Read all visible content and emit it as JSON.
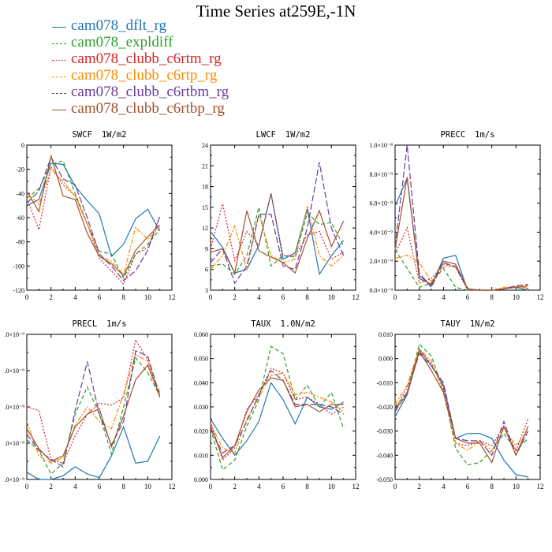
{
  "title": "Time Series at259E,-1N",
  "legend": [
    {
      "label": "cam078_dflt_rg",
      "color": "#1f77b4",
      "dash": "solid"
    },
    {
      "label": "cam078_expldiff",
      "color": "#2ca02c",
      "dash": "dash"
    },
    {
      "label": "cam078_clubb_c6rtm_rg",
      "color": "#d62728",
      "dash": "dot"
    },
    {
      "label": "cam078_clubb_c6rtp_rg",
      "color": "#ff8c00",
      "dash": "dashdot"
    },
    {
      "label": "cam078_clubb_c6rtbm_rg",
      "color": "#6a3d9a",
      "dash": "longdash"
    },
    {
      "label": "cam078_clubb_c6rtbp_rg",
      "color": "#a0522d",
      "dash": "solid"
    }
  ],
  "chart_data": [
    {
      "type": "line",
      "title": "SWCF",
      "units": "1W/m2",
      "x": [
        0,
        1,
        2,
        3,
        4,
        5,
        6,
        7,
        8,
        9,
        10,
        11
      ],
      "xlim": [
        0,
        12
      ],
      "xticks": [
        "0",
        "2",
        "4",
        "6",
        "8",
        "10",
        "12"
      ],
      "ylim": [
        -120,
        0
      ],
      "yticks": [
        "-120",
        "-100",
        "-80",
        "-60",
        "-40",
        "-20",
        "0"
      ],
      "series": [
        {
          "name": "cam078_dflt_rg",
          "values": [
            -50,
            -45,
            -15,
            -16,
            -34,
            -46,
            -57,
            -92,
            -82,
            -61,
            -53,
            -71
          ]
        },
        {
          "name": "cam078_expldiff",
          "values": [
            -44,
            -36,
            -16,
            -13,
            -40,
            -65,
            -88,
            -90,
            -110,
            -90,
            -82,
            -70
          ]
        },
        {
          "name": "cam078_clubb_c6rtm_rg",
          "values": [
            -44,
            -70,
            -18,
            -33,
            -42,
            -65,
            -94,
            -104,
            -115,
            -90,
            -85,
            -59
          ]
        },
        {
          "name": "cam078_clubb_c6rtp_rg",
          "values": [
            -39,
            -49,
            -20,
            -30,
            -42,
            -65,
            -92,
            -96,
            -107,
            -68,
            -78,
            -68
          ]
        },
        {
          "name": "cam078_clubb_c6rtbm_rg",
          "values": [
            -48,
            -38,
            -10,
            -28,
            -33,
            -60,
            -90,
            -100,
            -112,
            -104,
            -87,
            -59
          ]
        },
        {
          "name": "cam078_clubb_c6rtbp_rg",
          "values": [
            -38,
            -55,
            -9,
            -42,
            -45,
            -73,
            -92,
            -98,
            -108,
            -87,
            -76,
            -66
          ]
        }
      ]
    },
    {
      "type": "line",
      "title": "LWCF",
      "units": "1W/m2",
      "x": [
        0,
        1,
        2,
        3,
        4,
        5,
        6,
        7,
        8,
        9,
        10,
        11
      ],
      "xlim": [
        0,
        12
      ],
      "xticks": [
        "0",
        "2",
        "4",
        "6",
        "8",
        "10",
        "12"
      ],
      "ylim": [
        3,
        24
      ],
      "yticks": [
        "3",
        "6",
        "9",
        "12",
        "15",
        "18",
        "21",
        "24"
      ],
      "series": [
        {
          "name": "cam078_dflt_rg",
          "values": [
            11.5,
            9.2,
            5.5,
            6,
            9.5,
            17,
            7.5,
            8.4,
            14.8,
            5.3,
            8,
            10.2
          ]
        },
        {
          "name": "cam078_expldiff",
          "values": [
            6.5,
            6.8,
            5.3,
            8,
            15,
            6.5,
            8,
            7.8,
            14.2,
            12.5,
            12.8,
            9.4
          ]
        },
        {
          "name": "cam078_clubb_c6rtm_rg",
          "values": [
            9,
            15.5,
            7.3,
            11.5,
            9.5,
            17,
            8,
            8,
            11,
            11.5,
            7.5,
            8.5
          ]
        },
        {
          "name": "cam078_clubb_c6rtp_rg",
          "values": [
            6,
            8,
            12.3,
            6,
            14,
            8,
            7,
            7.5,
            15.2,
            8,
            6.5,
            8
          ]
        },
        {
          "name": "cam078_clubb_c6rtbm_rg",
          "values": [
            7,
            9,
            4,
            6.5,
            14,
            14,
            6.5,
            6,
            12,
            21.5,
            12,
            8
          ]
        },
        {
          "name": "cam078_clubb_c6rtbp_rg",
          "values": [
            8.5,
            9,
            5.5,
            14.5,
            8.7,
            7.8,
            7,
            5.5,
            10.5,
            14.5,
            9.3,
            13
          ]
        }
      ]
    },
    {
      "type": "line",
      "title": "PRECC",
      "units": "1m/s",
      "x": [
        0,
        1,
        2,
        3,
        4,
        5,
        6,
        7,
        8,
        9,
        10,
        11
      ],
      "xlim": [
        0,
        12
      ],
      "xticks": [
        "0",
        "2",
        "4",
        "6",
        "8",
        "10",
        "12"
      ],
      "ylim": [
        0,
        1e-08
      ],
      "yticks": [
        "0.0×10⁻⁹",
        "2.0×10⁻⁹",
        "4.0×10⁻⁹",
        "6.0×10⁻⁹",
        "8.0×10⁻⁹",
        "1.0×10⁻⁸"
      ],
      "series": [
        {
          "name": "cam078_dflt_rg",
          "values": [
            5.8e-09,
            7.7e-09,
            1e-09,
            3e-10,
            2.2e-09,
            2.4e-09,
            0,
            0,
            0,
            1e-10,
            2e-10,
            0
          ]
        },
        {
          "name": "cam078_expldiff",
          "values": [
            2.8e-09,
            1.5e-09,
            2e-10,
            5e-10,
            1.5e-09,
            2e-10,
            0,
            0,
            0,
            1e-10,
            2e-10,
            0
          ]
        },
        {
          "name": "cam078_clubb_c6rtm_rg",
          "values": [
            2.5e-09,
            4.3e-09,
            5e-10,
            8e-10,
            1.8e-09,
            1.6e-09,
            0,
            0,
            0,
            1e-10,
            3e-10,
            1e-10
          ]
        },
        {
          "name": "cam078_clubb_c6rtp_rg",
          "values": [
            2.2e-09,
            2.4e-09,
            1.9e-09,
            6e-10,
            1.6e-09,
            1.7e-09,
            1e-10,
            0,
            0,
            2e-10,
            2e-10,
            2e-10
          ]
        },
        {
          "name": "cam078_clubb_c6rtbm_rg",
          "values": [
            3e-09,
            1e-08,
            1.2e-09,
            2e-10,
            1.9e-09,
            1.6e-09,
            1e-10,
            0,
            0,
            1e-10,
            3e-10,
            4e-10
          ]
        },
        {
          "name": "cam078_clubb_c6rtbp_rg",
          "values": [
            2.8e-09,
            7.8e-09,
            8e-10,
            4e-10,
            2e-09,
            1.8e-09,
            1e-10,
            0,
            0,
            1e-10,
            2e-10,
            3e-10
          ]
        }
      ]
    },
    {
      "type": "line",
      "title": "PRECL",
      "units": "1m/s",
      "x": [
        0,
        1,
        2,
        3,
        4,
        5,
        6,
        7,
        8,
        9,
        10,
        11
      ],
      "xlim": [
        0,
        12
      ],
      "xticks": [
        "0",
        "2",
        "4",
        "6",
        "8",
        "10",
        "12"
      ],
      "ylim": [
        0,
        8e-09
      ],
      "yticks": [
        ".0×10⁻⁹",
        ".0×10⁻⁹",
        ".0×10⁻⁹",
        ".0×10⁻⁹",
        ".0×10⁻⁹"
      ],
      "series": [
        {
          "name": "cam078_dflt_rg",
          "values": [
            4e-10,
            0,
            0,
            2e-10,
            7e-10,
            3e-10,
            1e-10,
            1.3e-09,
            2.9e-09,
            9e-10,
            1e-09,
            2.4e-09
          ]
        },
        {
          "name": "cam078_expldiff",
          "values": [
            2.2e-09,
            1.6e-09,
            3e-10,
            9e-10,
            3.6e-09,
            5.1e-09,
            3.6e-09,
            1.4e-09,
            4e-09,
            6.7e-09,
            5.9e-09,
            4.6e-09
          ]
        },
        {
          "name": "cam078_clubb_c6rtm_rg",
          "values": [
            4e-09,
            3.8e-09,
            1.1e-09,
            9e-10,
            2.4e-09,
            3.6e-09,
            4.2e-09,
            4.1e-09,
            4.5e-09,
            7.7e-09,
            6.6e-09,
            4.5e-09
          ]
        },
        {
          "name": "cam078_clubb_c6rtp_rg",
          "values": [
            3.2e-09,
            1.3e-09,
            9e-10,
            1.2e-09,
            3e-09,
            4e-09,
            3.2e-09,
            2.8e-09,
            4.7e-09,
            6.9e-09,
            6.5e-09,
            4.8e-09
          ]
        },
        {
          "name": "cam078_clubb_c6rtbm_rg",
          "values": [
            2.5e-09,
            1.6e-09,
            1.1e-09,
            7e-10,
            3.8e-09,
            6.5e-09,
            3.6e-09,
            1.9e-09,
            3.2e-09,
            7.1e-09,
            6.8e-09,
            4.6e-09
          ]
        },
        {
          "name": "cam078_clubb_c6rtbp_rg",
          "values": [
            2.8e-09,
            1.7e-09,
            1e-09,
            1.3e-09,
            2.9e-09,
            3.6e-09,
            3.9e-09,
            1.8e-09,
            3.5e-09,
            5.5e-09,
            6.3e-09,
            4.6e-09
          ]
        }
      ]
    },
    {
      "type": "line",
      "title": "TAUX",
      "units": "1.0N/m2",
      "x": [
        0,
        1,
        2,
        3,
        4,
        5,
        6,
        7,
        8,
        9,
        10,
        11
      ],
      "xlim": [
        0,
        12
      ],
      "xticks": [
        "0",
        "2",
        "4",
        "6",
        "8",
        "10",
        "12"
      ],
      "ylim": [
        0,
        0.06
      ],
      "yticks": [
        "0.000",
        "0.010",
        "0.020",
        "0.030",
        "0.040",
        "0.050",
        "0.060"
      ],
      "series": [
        {
          "name": "cam078_dflt_rg",
          "values": [
            0.025,
            0.017,
            0.01,
            0.016,
            0.024,
            0.04,
            0.033,
            0.023,
            0.034,
            0.03,
            0.029,
            0.032
          ]
        },
        {
          "name": "cam078_expldiff",
          "values": [
            0.021,
            0.004,
            0.008,
            0.022,
            0.033,
            0.055,
            0.052,
            0.033,
            0.039,
            0.03,
            0.036,
            0.021
          ]
        },
        {
          "name": "cam078_clubb_c6rtm_rg",
          "values": [
            0.024,
            0.008,
            0.013,
            0.029,
            0.035,
            0.046,
            0.044,
            0.033,
            0.034,
            0.031,
            0.027,
            0.03
          ]
        },
        {
          "name": "cam078_clubb_c6rtp_rg",
          "values": [
            0.023,
            0.013,
            0.011,
            0.025,
            0.034,
            0.043,
            0.044,
            0.035,
            0.036,
            0.034,
            0.032,
            0.028
          ]
        },
        {
          "name": "cam078_clubb_c6rtbm_rg",
          "values": [
            0.021,
            0.011,
            0.014,
            0.024,
            0.035,
            0.045,
            0.041,
            0.031,
            0.031,
            0.031,
            0.03,
            0.027
          ]
        },
        {
          "name": "cam078_clubb_c6rtbp_rg",
          "values": [
            0.022,
            0.009,
            0.014,
            0.028,
            0.037,
            0.042,
            0.041,
            0.03,
            0.031,
            0.028,
            0.031,
            0.031
          ]
        }
      ]
    },
    {
      "type": "line",
      "title": "TAUY",
      "units": "1N/m2",
      "x": [
        0,
        1,
        2,
        3,
        4,
        5,
        6,
        7,
        8,
        9,
        10,
        11
      ],
      "xlim": [
        0,
        12
      ],
      "xticks": [
        "0",
        "2",
        "4",
        "6",
        "8",
        "10",
        "12"
      ],
      "ylim": [
        -0.05,
        0.01
      ],
      "yticks": [
        "-0.050",
        "-0.040",
        "-0.030",
        "-0.020",
        "-0.010",
        "0.000",
        "0.010"
      ],
      "series": [
        {
          "name": "cam078_dflt_rg",
          "values": [
            -0.024,
            -0.015,
            0.004,
            -0.003,
            -0.011,
            -0.033,
            -0.031,
            -0.031,
            -0.033,
            -0.042,
            -0.048,
            -0.049
          ]
        },
        {
          "name": "cam078_expldiff",
          "values": [
            -0.02,
            -0.014,
            0.006,
            0.001,
            -0.013,
            -0.037,
            -0.044,
            -0.043,
            -0.038,
            -0.031,
            -0.038,
            -0.033
          ]
        },
        {
          "name": "cam078_clubb_c6rtm_rg",
          "values": [
            -0.021,
            -0.012,
            0.003,
            -0.002,
            -0.012,
            -0.035,
            -0.036,
            -0.034,
            -0.036,
            -0.028,
            -0.038,
            -0.025
          ]
        },
        {
          "name": "cam078_clubb_c6rtp_rg",
          "values": [
            -0.019,
            -0.011,
            0.004,
            -0.001,
            -0.014,
            -0.035,
            -0.038,
            -0.034,
            -0.038,
            -0.029,
            -0.036,
            -0.03
          ]
        },
        {
          "name": "cam078_clubb_c6rtbm_rg",
          "values": [
            -0.022,
            -0.014,
            0.002,
            -0.003,
            -0.01,
            -0.033,
            -0.034,
            -0.034,
            -0.04,
            -0.026,
            -0.04,
            -0.03
          ]
        },
        {
          "name": "cam078_clubb_c6rtbp_rg",
          "values": [
            -0.021,
            -0.015,
            0.003,
            -0.005,
            -0.014,
            -0.033,
            -0.035,
            -0.035,
            -0.043,
            -0.028,
            -0.04,
            -0.028
          ]
        }
      ]
    }
  ]
}
